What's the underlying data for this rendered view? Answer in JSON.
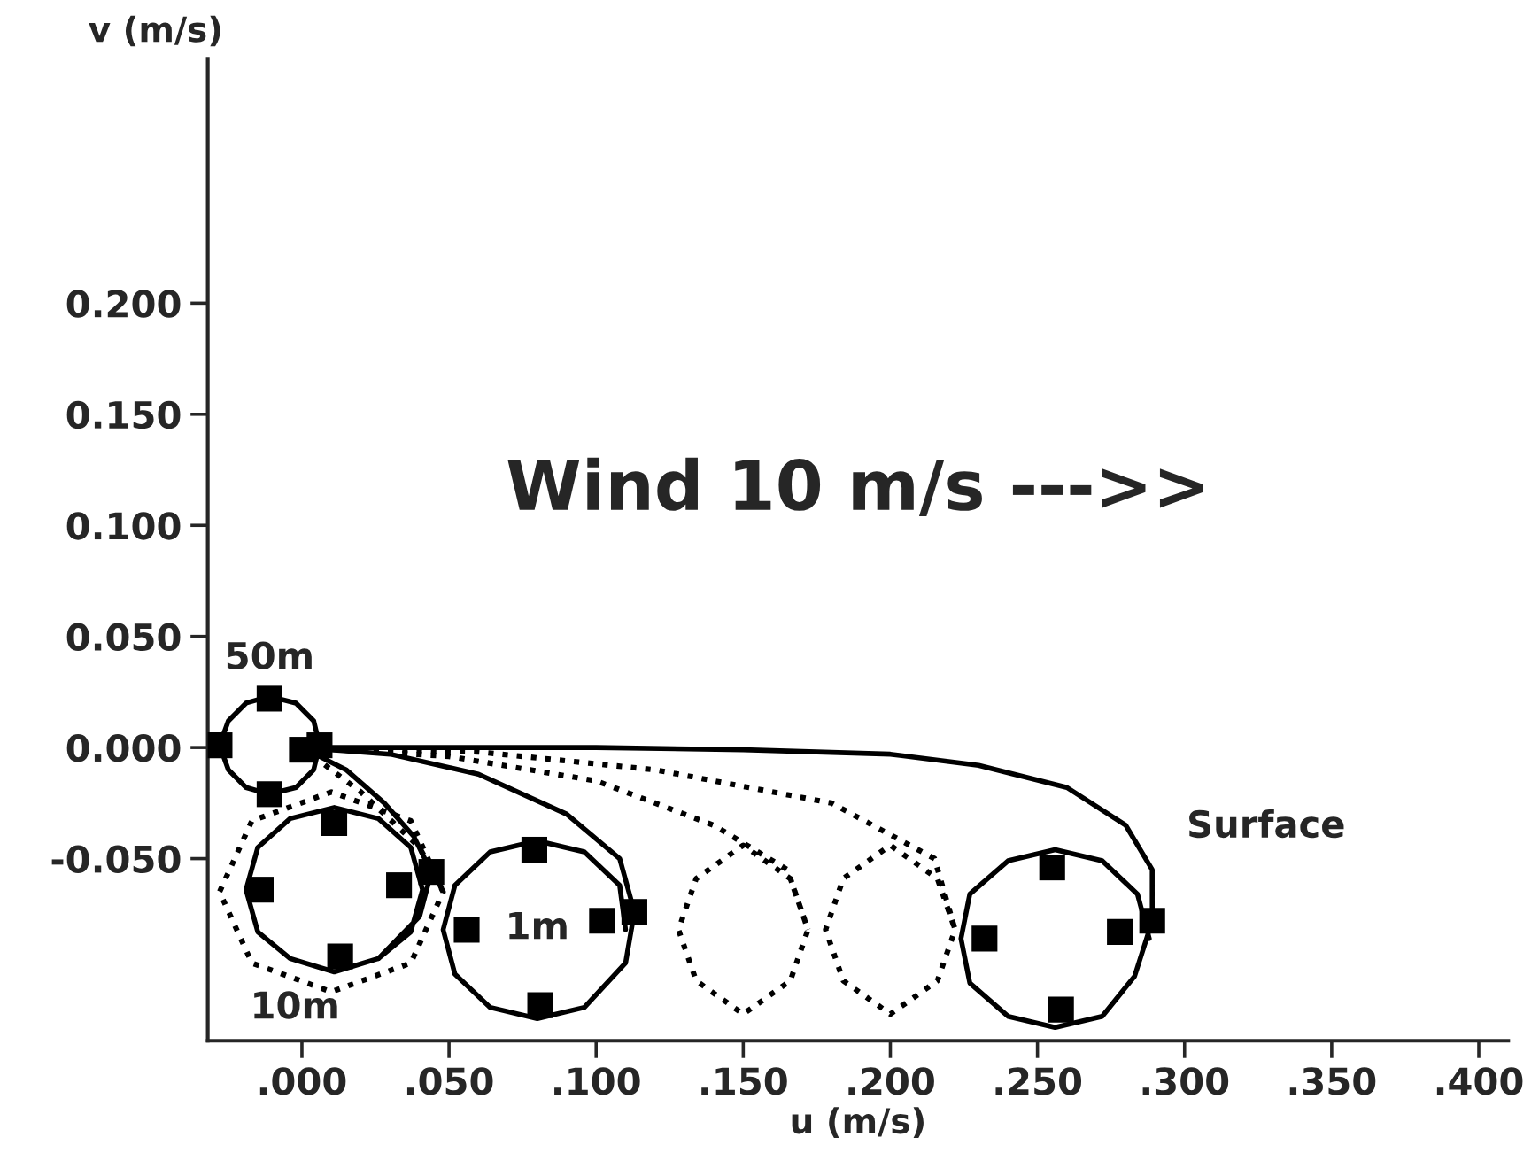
{
  "chart_data": {
    "type": "line",
    "xlabel": "u (m/s)",
    "ylabel": "v (m/s)",
    "xlim": [
      -0.032,
      0.41
    ],
    "ylim": [
      -0.132,
      0.31
    ],
    "xticks": [
      {
        "value": 0,
        "label": ".000"
      },
      {
        "value": 0.05,
        "label": ".050"
      },
      {
        "value": 0.1,
        "label": ".100"
      },
      {
        "value": 0.15,
        "label": ".150"
      },
      {
        "value": 0.2,
        "label": ".200"
      },
      {
        "value": 0.25,
        "label": ".250"
      },
      {
        "value": 0.3,
        "label": ".300"
      },
      {
        "value": 0.35,
        "label": ".350"
      },
      {
        "value": 0.4,
        "label": ".400"
      }
    ],
    "yticks": [
      {
        "value": -0.05,
        "label": "-0.050"
      },
      {
        "value": 0,
        "label": "0.000"
      },
      {
        "value": 0.05,
        "label": "0.050"
      },
      {
        "value": 0.1,
        "label": "0.100"
      },
      {
        "value": 0.15,
        "label": "0.150"
      },
      {
        "value": 0.2,
        "label": "0.200"
      }
    ],
    "grid": false,
    "legend": false,
    "annotations": [
      "Wind 10 m/s --->>"
    ],
    "series": [
      {
        "name": "50m",
        "color": "#000000",
        "line_style": "solid",
        "x": [
          0,
          0.006,
          0.004,
          -0.002,
          -0.011,
          -0.019,
          -0.025,
          -0.028,
          -0.025,
          -0.019,
          -0.011,
          -0.002,
          0.004,
          0.006
        ],
        "values": [
          0,
          0.001,
          0.012,
          0.02,
          0.023,
          0.02,
          0.012,
          0.001,
          -0.01,
          -0.018,
          -0.021,
          -0.018,
          -0.01,
          0.001
        ]
      },
      {
        "name": "10m",
        "color": "#000000",
        "line_style": "solid",
        "x": [
          0,
          0.015,
          0.028,
          0.038,
          0.044,
          0.04,
          0.026,
          0.011,
          -0.004,
          -0.015,
          -0.019,
          -0.015,
          -0.004,
          0.011,
          0.026,
          0.037,
          0.041,
          0.037,
          0.026
        ],
        "values": [
          0,
          -0.01,
          -0.025,
          -0.04,
          -0.056,
          -0.076,
          -0.095,
          -0.101,
          -0.095,
          -0.083,
          -0.064,
          -0.045,
          -0.032,
          -0.027,
          -0.032,
          -0.045,
          -0.064,
          -0.083,
          -0.095
        ]
      },
      {
        "name": "1m",
        "color": "#000000",
        "line_style": "solid",
        "x": [
          0,
          0.03,
          0.06,
          0.09,
          0.108,
          0.113,
          0.11,
          0.096,
          0.08,
          0.064,
          0.052,
          0.048,
          0.052,
          0.064,
          0.08,
          0.096,
          0.108,
          0.11
        ],
        "values": [
          0,
          -0.003,
          -0.012,
          -0.03,
          -0.05,
          -0.074,
          -0.097,
          -0.117,
          -0.122,
          -0.117,
          -0.102,
          -0.082,
          -0.062,
          -0.047,
          -0.042,
          -0.047,
          -0.062,
          -0.082
        ]
      },
      {
        "name": "Surface",
        "color": "#000000",
        "line_style": "solid",
        "x": [
          0,
          0.05,
          0.1,
          0.15,
          0.2,
          0.23,
          0.26,
          0.28,
          0.289,
          0.289,
          0.283,
          0.272,
          0.256,
          0.24,
          0.227,
          0.224,
          0.227,
          0.24,
          0.256,
          0.272,
          0.284,
          0.288
        ],
        "values": [
          0,
          0,
          0,
          -0.001,
          -0.003,
          -0.008,
          -0.018,
          -0.035,
          -0.055,
          -0.078,
          -0.103,
          -0.121,
          -0.126,
          -0.121,
          -0.106,
          -0.086,
          -0.066,
          -0.051,
          -0.046,
          -0.051,
          -0.066,
          -0.086
        ]
      },
      {
        "color": "#000000",
        "line_style": "dotted",
        "x": [
          0,
          0.02,
          0.04,
          0.048,
          0.037,
          0.01,
          -0.017,
          -0.028,
          -0.017,
          0.01,
          0.037,
          0.048
        ],
        "values": [
          0,
          -0.02,
          -0.045,
          -0.065,
          -0.097,
          -0.11,
          -0.097,
          -0.065,
          -0.033,
          -0.02,
          -0.033,
          -0.065
        ]
      },
      {
        "color": "#000000",
        "line_style": "dotted",
        "x": [
          0,
          0.05,
          0.1,
          0.14,
          0.165,
          0.172,
          0.166,
          0.15,
          0.134,
          0.128,
          0.134,
          0.15,
          0.166,
          0.172
        ],
        "values": [
          0,
          -0.004,
          -0.015,
          -0.035,
          -0.055,
          -0.082,
          -0.105,
          -0.12,
          -0.105,
          -0.082,
          -0.059,
          -0.044,
          -0.059,
          -0.082
        ]
      },
      {
        "color": "#000000",
        "line_style": "dotted",
        "x": [
          0,
          0.06,
          0.12,
          0.18,
          0.215,
          0.222,
          0.216,
          0.2,
          0.184,
          0.178,
          0.184,
          0.2,
          0.216,
          0.222
        ],
        "values": [
          0,
          -0.002,
          -0.01,
          -0.025,
          -0.05,
          -0.082,
          -0.105,
          -0.12,
          -0.105,
          -0.082,
          -0.059,
          -0.044,
          -0.059,
          -0.082
        ]
      },
      {
        "type": "scatter",
        "marker": "square",
        "color": "#000000",
        "x": [
          0,
          0.006,
          -0.011,
          -0.028,
          -0.011,
          0.011,
          0.013,
          -0.014,
          0.033,
          0.044,
          0.079,
          0.081,
          0.056,
          0.102,
          0.113,
          0.255,
          0.258,
          0.232,
          0.278,
          0.289
        ],
        "values": [
          -0.001,
          0.001,
          0.022,
          0.001,
          -0.021,
          -0.034,
          -0.094,
          -0.064,
          -0.062,
          -0.056,
          -0.046,
          -0.116,
          -0.082,
          -0.078,
          -0.074,
          -0.054,
          -0.118,
          -0.086,
          -0.083,
          -0.078
        ]
      }
    ]
  }
}
